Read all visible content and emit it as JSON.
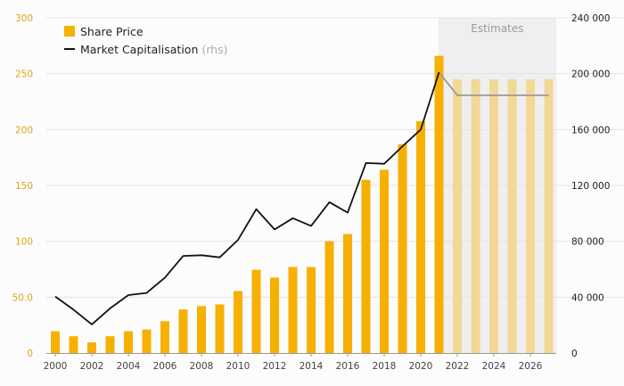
{
  "chart_data": {
    "type": "bar",
    "x": [
      2000,
      2001,
      2002,
      2003,
      2004,
      2005,
      2006,
      2007,
      2008,
      2009,
      2010,
      2011,
      2012,
      2013,
      2014,
      2015,
      2016,
      2017,
      2018,
      2019,
      2020,
      2021,
      2022,
      2023,
      2024,
      2025,
      2026,
      2027
    ],
    "series": [
      {
        "name": "Share Price",
        "type": "bar",
        "axis": "left",
        "color": "#f6b100",
        "estimate_color": "#f3d796",
        "values": [
          19.5,
          15,
          9.5,
          15,
          19.5,
          21,
          28.5,
          39,
          42,
          43.5,
          55.5,
          74.5,
          67.5,
          77,
          77,
          100,
          106.5,
          155,
          164,
          187,
          207.5,
          266,
          245,
          245,
          245,
          245,
          245,
          245
        ]
      },
      {
        "name": "Market Capitalisation",
        "name_note": "(rhs)",
        "type": "line",
        "axis": "right",
        "color": "#111111",
        "estimate_color": "#999999",
        "values": [
          40500,
          31000,
          20500,
          32000,
          41500,
          43000,
          54000,
          69500,
          70000,
          68500,
          81000,
          103000,
          88500,
          96500,
          91000,
          108000,
          100500,
          136000,
          135500,
          148000,
          160000,
          201000,
          184500,
          184500,
          184500,
          184500,
          184500,
          184500
        ]
      }
    ],
    "estimate_start": 2022,
    "estimates_label": "Estimates",
    "left_axis": {
      "min": 0,
      "max": 300,
      "ticks": [
        "0",
        "50.0",
        "100",
        "150",
        "200",
        "250",
        "300"
      ],
      "color": "#e0a21a"
    },
    "right_axis": {
      "min": 0,
      "max": 240000,
      "ticks": [
        "0",
        "40 000",
        "80 000",
        "120 000",
        "160 000",
        "200 000",
        "240 000"
      ]
    },
    "x_ticks": [
      "2000",
      "2002",
      "2004",
      "2006",
      "2008",
      "2010",
      "2012",
      "2014",
      "2016",
      "2018",
      "2020",
      "2022",
      "2024",
      "2026"
    ],
    "grid": true,
    "legend_position": "top-left",
    "title": "",
    "xlabel": "",
    "ylabel": ""
  }
}
